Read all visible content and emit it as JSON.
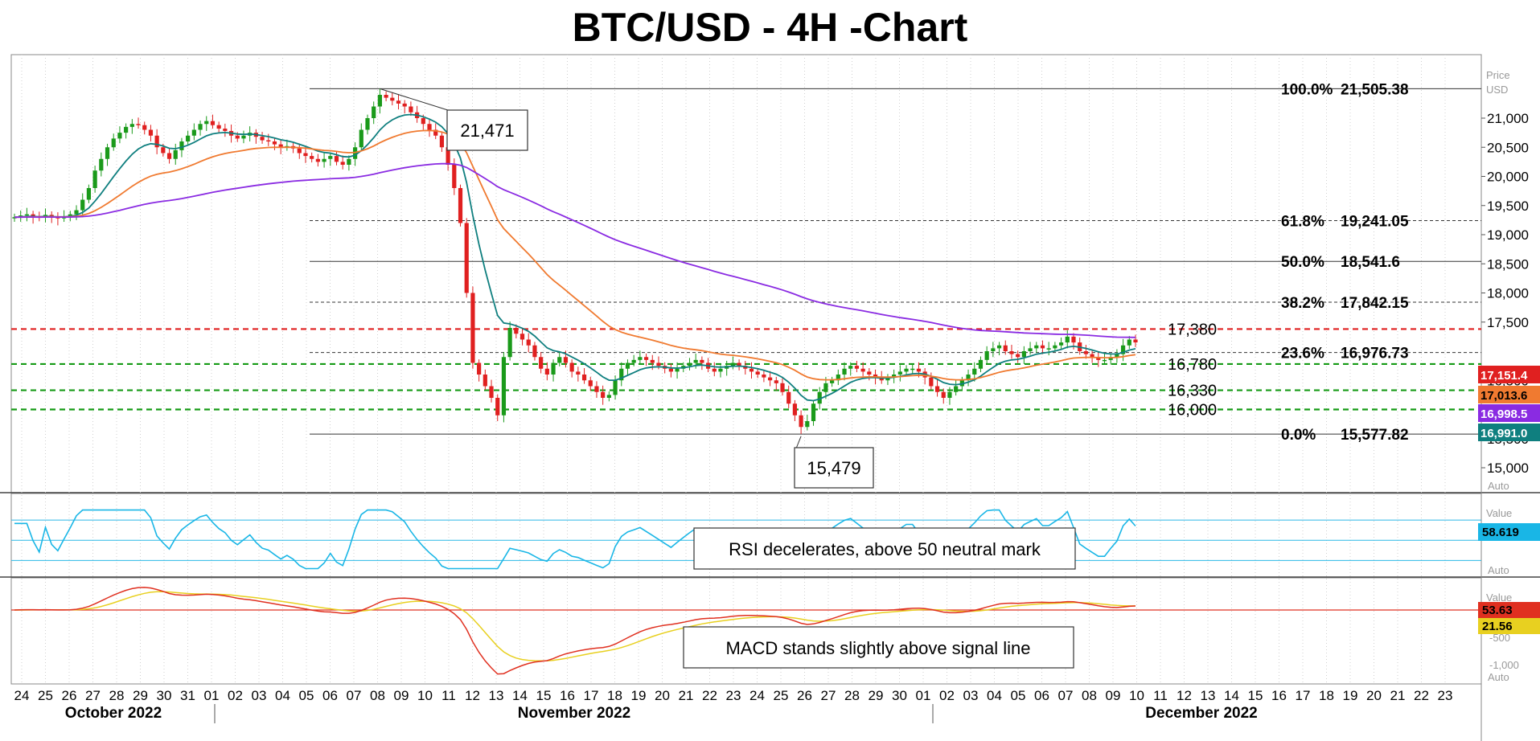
{
  "title": "BTC/USD - 4H -Chart",
  "colors": {
    "up": "#1a9a1a",
    "down": "#e02020",
    "ema_fast": "#0f7f7f",
    "ema_mid": "#f07a30",
    "ema_slow": "#8a2be2",
    "rsi": "#19b6e6",
    "macd": "#e03020",
    "signal": "#e8d020",
    "resistance": "#e02020",
    "support": "#159a15"
  },
  "chart_data": [
    {
      "type": "candlestick",
      "ylim": [
        15000,
        21800
      ],
      "yticks": [
        "21,000",
        "20,500",
        "20,000",
        "19,500",
        "19,000",
        "18,500",
        "18,000",
        "17,500",
        "16,500",
        "16,000",
        "15,500",
        "15,000"
      ],
      "axis_title": [
        "Price",
        "USD"
      ],
      "axis_footer": "Auto",
      "x_days": [
        "24",
        "25",
        "26",
        "27",
        "28",
        "29",
        "30",
        "31",
        "01",
        "02",
        "03",
        "04",
        "05",
        "06",
        "07",
        "08",
        "09",
        "10",
        "11",
        "12",
        "13",
        "14",
        "15",
        "16",
        "17",
        "18",
        "19",
        "20",
        "21",
        "22",
        "23",
        "24",
        "25",
        "26",
        "27",
        "28",
        "29",
        "30",
        "01",
        "02",
        "03",
        "04",
        "05",
        "06",
        "07",
        "08",
        "09",
        "10",
        "11",
        "12",
        "13",
        "14",
        "15",
        "16",
        "17",
        "18",
        "19",
        "20",
        "21",
        "22",
        "23"
      ],
      "months": [
        "October 2022",
        "November 2022",
        "December 2022"
      ],
      "closes": [
        19300,
        19330,
        19350,
        19310,
        19290,
        19340,
        19300,
        19280,
        19310,
        19350,
        19420,
        19600,
        19800,
        20100,
        20300,
        20500,
        20650,
        20750,
        20850,
        20900,
        20880,
        20800,
        20700,
        20500,
        20400,
        20300,
        20450,
        20600,
        20700,
        20800,
        20900,
        20950,
        20880,
        20820,
        20780,
        20700,
        20650,
        20700,
        20750,
        20680,
        20620,
        20600,
        20550,
        20500,
        20520,
        20480,
        20400,
        20350,
        20300,
        20250,
        20300,
        20350,
        20250,
        20200,
        20300,
        20500,
        20800,
        21000,
        21200,
        21400,
        21350,
        21300,
        21250,
        21200,
        21100,
        21000,
        20900,
        20800,
        20700,
        20500,
        20200,
        19800,
        19200,
        18000,
        16800,
        16600,
        16400,
        16200,
        15900,
        16900,
        17400,
        17300,
        17200,
        17100,
        16900,
        16700,
        16600,
        16800,
        16900,
        16800,
        16650,
        16600,
        16500,
        16400,
        16300,
        16200,
        16250,
        16500,
        16700,
        16800,
        16850,
        16900,
        16850,
        16800,
        16750,
        16700,
        16650,
        16700,
        16750,
        16800,
        16850,
        16800,
        16700,
        16650,
        16700,
        16750,
        16800,
        16750,
        16700,
        16650,
        16600,
        16550,
        16500,
        16450,
        16300,
        16100,
        15900,
        15700,
        15800,
        16100,
        16300,
        16450,
        16500,
        16600,
        16700,
        16750,
        16700,
        16650,
        16600,
        16550,
        16500,
        16550,
        16600,
        16650,
        16700,
        16700,
        16650,
        16550,
        16400,
        16300,
        16200,
        16300,
        16400,
        16500,
        16600,
        16700,
        16850,
        17000,
        17050,
        17100,
        17000,
        16950,
        16900,
        17000,
        17050,
        17100,
        17050,
        17050,
        17100,
        17150,
        17250,
        17150,
        17000,
        16950,
        16900,
        16850,
        16850,
        16900,
        16950,
        17100,
        17200,
        17151
      ],
      "ema_fast_approx": "teal line",
      "ema_mid_approx": "orange line",
      "ema_slow_approx": "purple line",
      "last_badges": [
        {
          "label": "17,151.4",
          "color": "#e02020"
        },
        {
          "label": "17,013.6",
          "color": "#f07a30"
        },
        {
          "label": "16,998.5",
          "color": "#8a2be2"
        },
        {
          "label": "16,991.0",
          "color": "#0f7f7f"
        }
      ],
      "fibonacci": [
        {
          "label": "100.0%",
          "price_label": "21,505.38",
          "value": 21505.38
        },
        {
          "label": "61.8%",
          "price_label": "19,241.05",
          "value": 19241.05
        },
        {
          "label": "50.0%",
          "price_label": "18,541.6",
          "value": 18541.6
        },
        {
          "label": "38.2%",
          "price_label": "17,842.15",
          "value": 17842.15
        },
        {
          "label": "23.6%",
          "price_label": "16,976.73",
          "value": 16976.73
        },
        {
          "label": "0.0%",
          "price_label": "15,577.82",
          "value": 15577.82
        }
      ],
      "levels": [
        {
          "label": "17,380",
          "value": 17380,
          "kind": "resistance"
        },
        {
          "label": "16,780",
          "value": 16780,
          "kind": "support"
        },
        {
          "label": "16,330",
          "value": 16330,
          "kind": "support"
        },
        {
          "label": "16,000",
          "value": 16000,
          "kind": "support"
        }
      ],
      "callouts": [
        {
          "label": "21,471",
          "value": 21471
        },
        {
          "label": "15,479",
          "value": 15479
        }
      ]
    },
    {
      "type": "line",
      "name": "RSI",
      "axis_title": "Value",
      "axis_footer": "Auto",
      "ylim": [
        0,
        100
      ],
      "levels": [
        70,
        50,
        30
      ],
      "last_value_label": "58.619",
      "annotation": "RSI decelerates, above 50 neutral mark"
    },
    {
      "type": "line",
      "name": "MACD",
      "axis_title": "Value",
      "axis_footer": "Auto",
      "ylim": [
        -1250,
        450
      ],
      "yticks": [
        "-500",
        "-1,000"
      ],
      "macd_last_label": "53.63",
      "signal_last_label": "21.56",
      "annotation": "MACD stands slightly above signal line"
    }
  ]
}
